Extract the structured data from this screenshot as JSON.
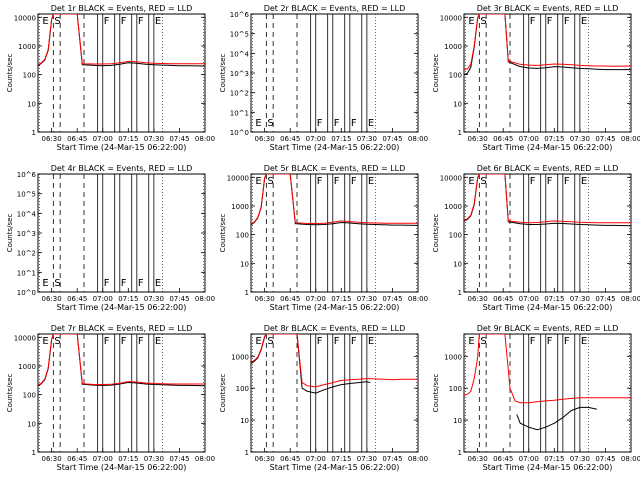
{
  "chart_data": [
    {
      "type": "line",
      "title": "Det 1r BLACK = Events, RED = LLD",
      "ylabel": "Counts/sec",
      "xlabel": "Start Time (24-Mar-15 06:22:00)",
      "x_ticks": [
        "06:30",
        "06:45",
        "07:00",
        "07:15",
        "07:30",
        "07:45",
        "08:00"
      ],
      "y_ticks": [
        "1",
        "10",
        "100",
        "1000",
        "10000"
      ],
      "ylog": [
        1,
        13000
      ],
      "flags": [
        "E",
        "S",
        "F",
        "F",
        "F",
        "E"
      ],
      "series": [
        {
          "color": "#000000",
          "x": [
            "06:22",
            "06:24",
            "06:26",
            "06:28",
            "06:30",
            "06:31",
            "06:45",
            "06:48",
            "06:55",
            "07:00",
            "07:05",
            "07:10",
            "07:15",
            "07:20",
            "07:25",
            "07:30",
            "07:35",
            "07:40",
            "07:45",
            "07:50",
            "08:00"
          ],
          "y": [
            200,
            250,
            320,
            700,
            8000,
            13000,
            13000,
            220,
            210,
            205,
            210,
            230,
            260,
            250,
            230,
            220,
            215,
            210,
            205,
            205,
            200
          ]
        },
        {
          "color": "#ff0000",
          "x": [
            "06:22",
            "06:24",
            "06:26",
            "06:28",
            "06:30",
            "06:31",
            "06:45",
            "06:48",
            "06:55",
            "07:00",
            "07:05",
            "07:10",
            "07:15",
            "07:20",
            "07:25",
            "07:30",
            "07:35",
            "07:40",
            "07:45",
            "07:50",
            "08:00"
          ],
          "y": [
            210,
            260,
            340,
            750,
            8500,
            13000,
            13000,
            240,
            235,
            235,
            240,
            260,
            290,
            280,
            260,
            250,
            245,
            240,
            240,
            240,
            240
          ]
        }
      ]
    },
    {
      "type": "line",
      "title": "Det 2r BLACK = Events, RED = LLD",
      "ylabel": "Counts/sec",
      "xlabel": "Start Time (24-Mar-15 06:22:00)",
      "x_ticks": [
        "06:30",
        "06:45",
        "07:00",
        "07:15",
        "07:30",
        "07:45",
        "08:00"
      ],
      "y_ticks": [
        "10^0",
        "10^1",
        "10^2",
        "10^3",
        "10^4",
        "10^5",
        "10^6"
      ],
      "ylog": [
        1,
        1000000
      ],
      "flags": [
        "E",
        "S",
        "F",
        "F",
        "F",
        "E"
      ],
      "series": []
    },
    {
      "type": "line",
      "title": "Det 3r BLACK = Events, RED = LLD",
      "ylabel": "Counts/sec",
      "xlabel": "Start Time (24-Mar-15 06:22:00)",
      "x_ticks": [
        "06:30",
        "06:45",
        "07:00",
        "07:15",
        "07:30",
        "07:45",
        "08:00"
      ],
      "y_ticks": [
        "1",
        "10",
        "100",
        "1000",
        "10000"
      ],
      "ylog": [
        1,
        13000
      ],
      "flags": [
        "E",
        "S",
        "F",
        "F",
        "F",
        "E"
      ],
      "series": [
        {
          "color": "#000000",
          "x": [
            "06:22",
            "06:24",
            "06:26",
            "06:28",
            "06:30",
            "06:31",
            "06:46",
            "06:48",
            "06:55",
            "07:00",
            "07:05",
            "07:10",
            "07:15",
            "07:20",
            "07:25",
            "07:30",
            "07:35",
            "07:40",
            "07:45",
            "07:50",
            "08:00"
          ],
          "y": [
            100,
            110,
            180,
            900,
            9000,
            13000,
            13000,
            280,
            190,
            170,
            165,
            175,
            190,
            185,
            175,
            165,
            160,
            155,
            150,
            150,
            150
          ]
        },
        {
          "color": "#ff0000",
          "x": [
            "06:22",
            "06:24",
            "06:26",
            "06:28",
            "06:30",
            "06:31",
            "06:46",
            "06:48",
            "06:55",
            "07:00",
            "07:05",
            "07:10",
            "07:15",
            "07:20",
            "07:25",
            "07:30",
            "07:35",
            "07:40",
            "07:45",
            "07:50",
            "08:00"
          ],
          "y": [
            150,
            160,
            230,
            1000,
            9500,
            13000,
            13000,
            300,
            230,
            215,
            210,
            220,
            235,
            230,
            220,
            210,
            205,
            200,
            200,
            195,
            200
          ]
        }
      ]
    },
    {
      "type": "line",
      "title": "Det 4r BLACK = Events, RED = LLD",
      "ylabel": "Counts/sec",
      "xlabel": "Start Time (24-Mar-15 06:22:00)",
      "x_ticks": [
        "06:30",
        "06:45",
        "07:00",
        "07:15",
        "07:30",
        "07:45",
        "08:00"
      ],
      "y_ticks": [
        "10^0",
        "10^1",
        "10^2",
        "10^3",
        "10^4",
        "10^5",
        "10^6"
      ],
      "ylog": [
        1,
        1000000
      ],
      "flags": [
        "E",
        "S",
        "F",
        "F",
        "F",
        "E"
      ],
      "series": []
    },
    {
      "type": "line",
      "title": "Det 5r BLACK = Events, RED = LLD",
      "ylabel": "Counts/sec",
      "xlabel": "Start Time (24-Mar-15 06:22:00)",
      "x_ticks": [
        "06:30",
        "06:45",
        "07:00",
        "07:15",
        "07:30",
        "07:45",
        "08:00"
      ],
      "y_ticks": [
        "1",
        "10",
        "100",
        "1000",
        "10000"
      ],
      "ylog": [
        1,
        13000
      ],
      "flags": [
        "E",
        "S",
        "F",
        "F",
        "F",
        "E"
      ],
      "series": [
        {
          "color": "#000000",
          "x": [
            "06:22",
            "06:24",
            "06:26",
            "06:28",
            "06:30",
            "06:31",
            "06:45",
            "06:48",
            "06:55",
            "07:00",
            "07:05",
            "07:10",
            "07:15",
            "07:20",
            "07:25",
            "07:30",
            "07:35",
            "07:40",
            "07:45",
            "07:50",
            "08:00"
          ],
          "y": [
            220,
            270,
            380,
            900,
            9000,
            13000,
            13000,
            240,
            225,
            220,
            225,
            240,
            265,
            255,
            240,
            230,
            225,
            220,
            215,
            215,
            210
          ]
        },
        {
          "color": "#ff0000",
          "x": [
            "06:22",
            "06:24",
            "06:26",
            "06:28",
            "06:30",
            "06:31",
            "06:45",
            "06:48",
            "06:55",
            "07:00",
            "07:05",
            "07:10",
            "07:15",
            "07:20",
            "07:25",
            "07:30",
            "07:35",
            "07:40",
            "07:45",
            "07:50",
            "08:00"
          ],
          "y": [
            230,
            280,
            400,
            950,
            9500,
            13000,
            13000,
            260,
            245,
            245,
            250,
            270,
            300,
            285,
            270,
            260,
            255,
            250,
            250,
            250,
            250
          ]
        }
      ]
    },
    {
      "type": "line",
      "title": "Det 6r BLACK = Events, RED = LLD",
      "ylabel": "Counts/sec",
      "xlabel": "Start Time (24-Mar-15 06:22:00)",
      "x_ticks": [
        "06:30",
        "06:45",
        "07:00",
        "07:15",
        "07:30",
        "07:45",
        "08:00"
      ],
      "y_ticks": [
        "1",
        "10",
        "100",
        "1000",
        "10000"
      ],
      "ylog": [
        1,
        13000
      ],
      "flags": [
        "E",
        "S",
        "F",
        "F",
        "F",
        "E"
      ],
      "series": [
        {
          "color": "#000000",
          "x": [
            "06:22",
            "06:24",
            "06:26",
            "06:28",
            "06:30",
            "06:31",
            "06:46",
            "06:48",
            "06:55",
            "07:00",
            "07:05",
            "07:10",
            "07:15",
            "07:20",
            "07:25",
            "07:30",
            "07:35",
            "07:40",
            "07:45",
            "07:50",
            "08:00"
          ],
          "y": [
            300,
            340,
            450,
            1100,
            9000,
            13000,
            13000,
            280,
            240,
            225,
            225,
            235,
            250,
            245,
            235,
            225,
            220,
            215,
            210,
            210,
            205
          ]
        },
        {
          "color": "#ff0000",
          "x": [
            "06:22",
            "06:24",
            "06:26",
            "06:28",
            "06:30",
            "06:31",
            "06:46",
            "06:48",
            "06:55",
            "07:00",
            "07:05",
            "07:10",
            "07:15",
            "07:20",
            "07:25",
            "07:30",
            "07:35",
            "07:40",
            "07:45",
            "07:50",
            "08:00"
          ],
          "y": [
            320,
            360,
            480,
            1200,
            9500,
            13000,
            13000,
            300,
            270,
            260,
            265,
            280,
            300,
            290,
            280,
            270,
            265,
            260,
            260,
            260,
            260
          ]
        }
      ]
    },
    {
      "type": "line",
      "title": "Det 7r BLACK = Events, RED = LLD",
      "ylabel": "Counts/sec",
      "xlabel": "Start Time (24-Mar-15 06:22:00)",
      "x_ticks": [
        "06:30",
        "06:45",
        "07:00",
        "07:15",
        "07:30",
        "07:45",
        "08:00"
      ],
      "y_ticks": [
        "1",
        "10",
        "100",
        "1000",
        "10000"
      ],
      "ylog": [
        1,
        13000
      ],
      "flags": [
        "E",
        "S",
        "F",
        "F",
        "F",
        "E"
      ],
      "series": [
        {
          "color": "#000000",
          "x": [
            "06:22",
            "06:24",
            "06:26",
            "06:28",
            "06:30",
            "06:31",
            "06:45",
            "06:48",
            "06:55",
            "07:00",
            "07:05",
            "07:10",
            "07:15",
            "07:20",
            "07:25",
            "07:30",
            "07:35",
            "07:40",
            "07:45",
            "07:50",
            "08:00"
          ],
          "y": [
            200,
            240,
            330,
            800,
            8000,
            13000,
            13000,
            230,
            215,
            210,
            215,
            235,
            265,
            255,
            235,
            225,
            220,
            215,
            210,
            210,
            205
          ]
        },
        {
          "color": "#ff0000",
          "x": [
            "06:22",
            "06:24",
            "06:26",
            "06:28",
            "06:30",
            "06:31",
            "06:45",
            "06:48",
            "06:55",
            "07:00",
            "07:05",
            "07:10",
            "07:15",
            "07:20",
            "07:25",
            "07:30",
            "07:35",
            "07:40",
            "07:45",
            "07:50",
            "08:00"
          ],
          "y": [
            210,
            250,
            350,
            850,
            8500,
            13000,
            13000,
            240,
            225,
            225,
            230,
            250,
            285,
            275,
            255,
            245,
            240,
            235,
            235,
            235,
            235
          ]
        }
      ]
    },
    {
      "type": "line",
      "title": "Det 8r BLACK = Events, RED = LLD",
      "ylabel": "Counts/sec",
      "xlabel": "Start Time (24-Mar-15 06:22:00)",
      "x_ticks": [
        "06:30",
        "06:45",
        "07:00",
        "07:15",
        "07:30",
        "07:45",
        "08:00"
      ],
      "y_ticks": [
        "1",
        "10",
        "100",
        "1000"
      ],
      "ylog": [
        1,
        5000
      ],
      "flags": [
        "E",
        "S",
        "F",
        "F",
        "F",
        "E"
      ],
      "series": [
        {
          "color": "#000000",
          "x": [
            "06:22",
            "06:24",
            "06:26",
            "06:28",
            "06:30",
            "06:31",
            "06:49",
            "06:52",
            "06:55",
            "07:00",
            "07:05",
            "07:10",
            "07:15",
            "07:20",
            "07:25",
            "07:30",
            "07:32"
          ],
          "y": [
            600,
            700,
            900,
            1600,
            4000,
            5000,
            5000,
            100,
            80,
            70,
            90,
            110,
            130,
            140,
            150,
            160,
            150
          ]
        },
        {
          "color": "#ff0000",
          "x": [
            "06:22",
            "06:24",
            "06:26",
            "06:28",
            "06:30",
            "06:31",
            "06:49",
            "06:52",
            "06:55",
            "07:00",
            "07:05",
            "07:10",
            "07:15",
            "07:20",
            "07:25",
            "07:30",
            "07:35",
            "07:40",
            "07:45",
            "07:50",
            "08:00"
          ],
          "y": [
            650,
            750,
            950,
            1700,
            4200,
            5000,
            5000,
            150,
            120,
            110,
            130,
            150,
            175,
            185,
            190,
            200,
            195,
            190,
            185,
            190,
            190
          ]
        }
      ]
    },
    {
      "type": "line",
      "title": "Det 9r BLACK = Events, RED = LLD",
      "ylabel": "Counts/sec",
      "xlabel": "Start Time (24-Mar-15 06:22:00)",
      "x_ticks": [
        "06:30",
        "06:45",
        "07:00",
        "07:15",
        "07:30",
        "07:45",
        "08:00"
      ],
      "y_ticks": [
        "1",
        "10",
        "100",
        "1000"
      ],
      "ylog": [
        1,
        5000
      ],
      "flags": [
        "E",
        "S",
        "F",
        "F",
        "F",
        "E"
      ],
      "series": [
        {
          "color": "#000000",
          "x": [
            "06:53",
            "06:55",
            "07:00",
            "07:05",
            "07:10",
            "07:15",
            "07:20",
            "07:25",
            "07:30",
            "07:35",
            "07:40"
          ],
          "y": [
            15,
            8,
            6,
            5,
            6,
            8,
            12,
            20,
            25,
            25,
            22
          ]
        },
        {
          "color": "#ff0000",
          "x": [
            "06:22",
            "06:24",
            "06:26",
            "06:28",
            "06:30",
            "06:31",
            "06:46",
            "06:49",
            "06:52",
            "06:55",
            "07:00",
            "07:05",
            "07:10",
            "07:15",
            "07:20",
            "07:25",
            "07:30",
            "07:35",
            "07:40",
            "07:45",
            "07:50",
            "08:00"
          ],
          "y": [
            60,
            65,
            80,
            200,
            900,
            5000,
            5000,
            100,
            40,
            35,
            35,
            38,
            40,
            42,
            45,
            48,
            50,
            50,
            50,
            50,
            50,
            50
          ]
        }
      ]
    }
  ]
}
